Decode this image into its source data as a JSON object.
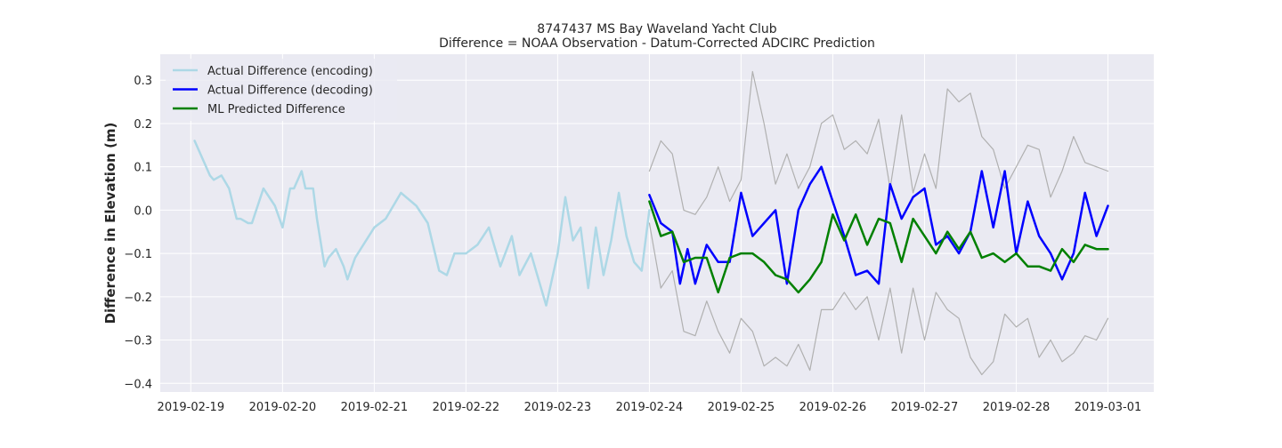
{
  "chart_data": {
    "type": "line",
    "title": "8747437 MS Bay Waveland Yacht Club",
    "subtitle": "Difference = NOAA Observation - Datum-Corrected ADCIRC Prediction",
    "xlabel": "",
    "ylabel": "Difference in Elevation (m)",
    "ylim": [
      -0.42,
      0.36
    ],
    "xlim": [
      "2019-02-18T16:00",
      "2019-03-01T12:00"
    ],
    "grid": true,
    "legend_position": "top-left",
    "background": "#eaeaf2",
    "x_tick_labels": [
      "2019-02-19",
      "2019-02-20",
      "2019-02-21",
      "2019-02-22",
      "2019-02-23",
      "2019-02-24",
      "2019-02-25",
      "2019-02-26",
      "2019-02-27",
      "2019-02-28",
      "2019-03-01"
    ],
    "y_ticks": [
      -0.4,
      -0.3,
      -0.2,
      -0.1,
      0.0,
      0.1,
      0.2,
      0.3
    ],
    "y_tick_labels": [
      "−0.4",
      "−0.3",
      "−0.2",
      "−0.1",
      "0.0",
      "0.1",
      "0.2",
      "0.3"
    ],
    "legend": [
      {
        "label": "Actual Difference (encoding)",
        "color": "#add8e6",
        "series": "encoding"
      },
      {
        "label": "Actual Difference (decoding)",
        "color": "#0000ff",
        "series": "decoding"
      },
      {
        "label": "ML Predicted Difference",
        "color": "#008000",
        "series": "predicted"
      }
    ],
    "series": [
      {
        "name": "Actual Difference (encoding)",
        "key": "encoding",
        "color": "#add8e6",
        "x": [
          "2019-02-19T01:00",
          "2019-02-19T03:00",
          "2019-02-19T05:00",
          "2019-02-19T06:00",
          "2019-02-19T08:00",
          "2019-02-19T10:00",
          "2019-02-19T12:00",
          "2019-02-19T13:00",
          "2019-02-19T15:00",
          "2019-02-19T16:00",
          "2019-02-19T19:00",
          "2019-02-19T22:00",
          "2019-02-20T00:00",
          "2019-02-20T02:00",
          "2019-02-20T03:00",
          "2019-02-20T05:00",
          "2019-02-20T06:00",
          "2019-02-20T08:00",
          "2019-02-20T09:00",
          "2019-02-20T11:00",
          "2019-02-20T12:00",
          "2019-02-20T14:00",
          "2019-02-20T16:00",
          "2019-02-20T17:00",
          "2019-02-20T19:00",
          "2019-02-21T00:00",
          "2019-02-21T03:00",
          "2019-02-21T07:00",
          "2019-02-21T11:00",
          "2019-02-21T14:00",
          "2019-02-21T17:00",
          "2019-02-21T19:00",
          "2019-02-21T21:00",
          "2019-02-22T00:00",
          "2019-02-22T03:00",
          "2019-02-22T06:00",
          "2019-02-22T09:00",
          "2019-02-22T12:00",
          "2019-02-22T14:00",
          "2019-02-22T17:00",
          "2019-02-22T19:00",
          "2019-02-22T21:00",
          "2019-02-23T00:00",
          "2019-02-23T02:00",
          "2019-02-23T04:00",
          "2019-02-23T06:00",
          "2019-02-23T08:00",
          "2019-02-23T10:00",
          "2019-02-23T12:00",
          "2019-02-23T14:00",
          "2019-02-23T16:00",
          "2019-02-23T18:00",
          "2019-02-23T20:00",
          "2019-02-23T22:00",
          "2019-02-24T00:00"
        ],
        "y": [
          0.16,
          0.12,
          0.08,
          0.07,
          0.08,
          0.05,
          -0.02,
          -0.02,
          -0.03,
          -0.03,
          0.05,
          0.01,
          -0.04,
          0.05,
          0.05,
          0.09,
          0.05,
          0.05,
          -0.02,
          -0.13,
          -0.11,
          -0.09,
          -0.13,
          -0.16,
          -0.11,
          -0.04,
          -0.02,
          0.04,
          0.01,
          -0.03,
          -0.14,
          -0.15,
          -0.1,
          -0.1,
          -0.08,
          -0.04,
          -0.13,
          -0.06,
          -0.15,
          -0.1,
          -0.16,
          -0.22,
          -0.1,
          0.03,
          -0.07,
          -0.04,
          -0.18,
          -0.04,
          -0.15,
          -0.07,
          0.04,
          -0.06,
          -0.12,
          -0.14,
          0.0
        ]
      },
      {
        "name": "Actual Difference (decoding)",
        "key": "decoding",
        "color": "#0000ff",
        "x": [
          "2019-02-24T00:00",
          "2019-02-24T03:00",
          "2019-02-24T06:00",
          "2019-02-24T08:00",
          "2019-02-24T10:00",
          "2019-02-24T12:00",
          "2019-02-24T15:00",
          "2019-02-24T18:00",
          "2019-02-24T21:00",
          "2019-02-25T00:00",
          "2019-02-25T03:00",
          "2019-02-25T06:00",
          "2019-02-25T09:00",
          "2019-02-25T12:00",
          "2019-02-25T15:00",
          "2019-02-25T18:00",
          "2019-02-25T21:00",
          "2019-02-26T00:00",
          "2019-02-26T03:00",
          "2019-02-26T06:00",
          "2019-02-26T09:00",
          "2019-02-26T12:00",
          "2019-02-26T15:00",
          "2019-02-26T18:00",
          "2019-02-26T21:00",
          "2019-02-27T00:00",
          "2019-02-27T03:00",
          "2019-02-27T06:00",
          "2019-02-27T09:00",
          "2019-02-27T12:00",
          "2019-02-27T15:00",
          "2019-02-27T18:00",
          "2019-02-27T21:00",
          "2019-02-28T00:00",
          "2019-02-28T03:00",
          "2019-02-28T06:00",
          "2019-02-28T09:00",
          "2019-02-28T12:00",
          "2019-02-28T15:00",
          "2019-02-28T18:00",
          "2019-02-28T21:00",
          "2019-03-01T00:00"
        ],
        "y": [
          0.035,
          -0.03,
          -0.05,
          -0.17,
          -0.09,
          -0.17,
          -0.08,
          -0.12,
          -0.12,
          0.04,
          -0.06,
          -0.03,
          0.0,
          -0.17,
          0.0,
          0.06,
          0.1,
          0.02,
          -0.06,
          -0.15,
          -0.14,
          -0.17,
          0.06,
          -0.02,
          0.03,
          0.05,
          -0.08,
          -0.06,
          -0.1,
          -0.05,
          0.09,
          -0.04,
          0.09,
          -0.1,
          0.02,
          -0.06,
          -0.1,
          -0.16,
          -0.1,
          0.04,
          -0.06,
          0.01
        ]
      },
      {
        "name": "ML Predicted Difference",
        "key": "predicted",
        "color": "#008000",
        "x": [
          "2019-02-24T00:00",
          "2019-02-24T03:00",
          "2019-02-24T06:00",
          "2019-02-24T09:00",
          "2019-02-24T12:00",
          "2019-02-24T15:00",
          "2019-02-24T18:00",
          "2019-02-24T21:00",
          "2019-02-25T00:00",
          "2019-02-25T03:00",
          "2019-02-25T06:00",
          "2019-02-25T09:00",
          "2019-02-25T12:00",
          "2019-02-25T15:00",
          "2019-02-25T18:00",
          "2019-02-25T21:00",
          "2019-02-26T00:00",
          "2019-02-26T03:00",
          "2019-02-26T06:00",
          "2019-02-26T09:00",
          "2019-02-26T12:00",
          "2019-02-26T15:00",
          "2019-02-26T18:00",
          "2019-02-26T21:00",
          "2019-02-27T00:00",
          "2019-02-27T03:00",
          "2019-02-27T06:00",
          "2019-02-27T09:00",
          "2019-02-27T12:00",
          "2019-02-27T15:00",
          "2019-02-27T18:00",
          "2019-02-27T21:00",
          "2019-02-28T00:00",
          "2019-02-28T03:00",
          "2019-02-28T06:00",
          "2019-02-28T09:00",
          "2019-02-28T12:00",
          "2019-02-28T15:00",
          "2019-02-28T18:00",
          "2019-02-28T21:00",
          "2019-03-01T00:00"
        ],
        "y": [
          0.02,
          -0.06,
          -0.05,
          -0.12,
          -0.11,
          -0.11,
          -0.19,
          -0.11,
          -0.1,
          -0.1,
          -0.12,
          -0.15,
          -0.16,
          -0.19,
          -0.16,
          -0.12,
          -0.01,
          -0.07,
          -0.01,
          -0.08,
          -0.02,
          -0.03,
          -0.12,
          -0.02,
          -0.06,
          -0.1,
          -0.05,
          -0.09,
          -0.05,
          -0.11,
          -0.1,
          -0.12,
          -0.1,
          -0.13,
          -0.13,
          -0.14,
          -0.09,
          -0.12,
          -0.08,
          -0.09,
          -0.09
        ]
      },
      {
        "name": "",
        "key": "upper-bound",
        "color": "#b0b0b0",
        "x": [
          "2019-02-24T00:00",
          "2019-02-24T03:00",
          "2019-02-24T06:00",
          "2019-02-24T09:00",
          "2019-02-24T12:00",
          "2019-02-24T15:00",
          "2019-02-24T18:00",
          "2019-02-24T21:00",
          "2019-02-25T00:00",
          "2019-02-25T03:00",
          "2019-02-25T06:00",
          "2019-02-25T09:00",
          "2019-02-25T12:00",
          "2019-02-25T15:00",
          "2019-02-25T18:00",
          "2019-02-25T21:00",
          "2019-02-26T00:00",
          "2019-02-26T03:00",
          "2019-02-26T06:00",
          "2019-02-26T09:00",
          "2019-02-26T12:00",
          "2019-02-26T15:00",
          "2019-02-26T18:00",
          "2019-02-26T21:00",
          "2019-02-27T00:00",
          "2019-02-27T03:00",
          "2019-02-27T06:00",
          "2019-02-27T09:00",
          "2019-02-27T12:00",
          "2019-02-27T15:00",
          "2019-02-27T18:00",
          "2019-02-27T21:00",
          "2019-02-28T00:00",
          "2019-02-28T03:00",
          "2019-02-28T06:00",
          "2019-02-28T09:00",
          "2019-02-28T12:00",
          "2019-02-28T15:00",
          "2019-02-28T18:00",
          "2019-02-28T21:00",
          "2019-03-01T00:00"
        ],
        "y": [
          0.09,
          0.16,
          0.13,
          0.0,
          -0.01,
          0.03,
          0.1,
          0.02,
          0.07,
          0.32,
          0.2,
          0.06,
          0.13,
          0.05,
          0.1,
          0.2,
          0.22,
          0.14,
          0.16,
          0.13,
          0.21,
          0.05,
          0.22,
          0.04,
          0.13,
          0.05,
          0.28,
          0.25,
          0.27,
          0.17,
          0.14,
          0.05,
          0.1,
          0.15,
          0.14,
          0.03,
          0.09,
          0.17,
          0.11,
          0.1,
          0.09
        ]
      },
      {
        "name": "",
        "key": "lower-bound",
        "color": "#b0b0b0",
        "x": [
          "2019-02-24T00:00",
          "2019-02-24T03:00",
          "2019-02-24T06:00",
          "2019-02-24T09:00",
          "2019-02-24T12:00",
          "2019-02-24T15:00",
          "2019-02-24T18:00",
          "2019-02-24T21:00",
          "2019-02-25T00:00",
          "2019-02-25T03:00",
          "2019-02-25T06:00",
          "2019-02-25T09:00",
          "2019-02-25T12:00",
          "2019-02-25T15:00",
          "2019-02-25T18:00",
          "2019-02-25T21:00",
          "2019-02-26T00:00",
          "2019-02-26T03:00",
          "2019-02-26T06:00",
          "2019-02-26T09:00",
          "2019-02-26T12:00",
          "2019-02-26T15:00",
          "2019-02-26T18:00",
          "2019-02-26T21:00",
          "2019-02-27T00:00",
          "2019-02-27T03:00",
          "2019-02-27T06:00",
          "2019-02-27T09:00",
          "2019-02-27T12:00",
          "2019-02-27T15:00",
          "2019-02-27T18:00",
          "2019-02-27T21:00",
          "2019-02-28T00:00",
          "2019-02-28T03:00",
          "2019-02-28T06:00",
          "2019-02-28T09:00",
          "2019-02-28T12:00",
          "2019-02-28T15:00",
          "2019-02-28T18:00",
          "2019-02-28T21:00",
          "2019-03-01T00:00"
        ],
        "y": [
          -0.03,
          -0.18,
          -0.14,
          -0.28,
          -0.29,
          -0.21,
          -0.28,
          -0.33,
          -0.25,
          -0.28,
          -0.36,
          -0.34,
          -0.36,
          -0.31,
          -0.37,
          -0.23,
          -0.23,
          -0.19,
          -0.23,
          -0.2,
          -0.3,
          -0.18,
          -0.33,
          -0.18,
          -0.3,
          -0.19,
          -0.23,
          -0.25,
          -0.34,
          -0.38,
          -0.35,
          -0.24,
          -0.27,
          -0.25,
          -0.34,
          -0.3,
          -0.35,
          -0.33,
          -0.29,
          -0.3,
          -0.25
        ]
      }
    ]
  }
}
